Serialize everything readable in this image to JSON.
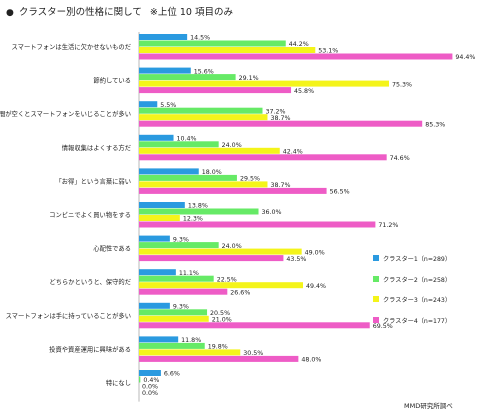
{
  "header": {
    "bullet": "●",
    "title": "クラスター別の性格に関して",
    "note": "※上位 10 項目のみ"
  },
  "source": "MMD研究所調べ",
  "colors": {
    "クラスター1": "#2a9ae0",
    "クラスター2": "#66ea66",
    "クラスター3": "#f4f41a",
    "クラスター4": "#ee5cc6",
    "axis": "#b8b8b8"
  },
  "chart_data": {
    "type": "bar",
    "orientation": "horizontal",
    "categories": [
      "スマートフォンは生活に欠かせないものだ",
      "節約している",
      "時間が空くとスマートフォンをいじることが多い",
      "情報収集はよくする方だ",
      "「お得」という言葉に弱い",
      "コンビニでよく買い物をする",
      "心配性である",
      "どちらかというと、保守的だ",
      "スマートフォンは手に持っていることが多い",
      "投資や資産運用に興味がある",
      "特になし"
    ],
    "series": [
      {
        "name": "クラスター1",
        "legend": "クラスター1（n=289）",
        "values": [
          14.5,
          15.6,
          5.5,
          10.4,
          18.0,
          13.8,
          9.3,
          11.1,
          9.3,
          11.8,
          6.6
        ]
      },
      {
        "name": "クラスター2",
        "legend": "クラスター2（n=258）",
        "values": [
          44.2,
          29.1,
          37.2,
          24.0,
          29.5,
          36.0,
          24.0,
          22.5,
          20.5,
          19.8,
          0.4
        ]
      },
      {
        "name": "クラスター3",
        "legend": "クラスター3（n=243）",
        "values": [
          53.1,
          75.3,
          38.7,
          42.4,
          38.7,
          12.3,
          49.0,
          49.4,
          21.0,
          30.5,
          0.0
        ]
      },
      {
        "name": "クラスター4",
        "legend": "クラスター4（n=177）",
        "values": [
          94.4,
          45.8,
          85.3,
          74.6,
          56.5,
          71.2,
          43.5,
          26.6,
          69.5,
          48.0,
          0.0
        ]
      }
    ],
    "xlim": [
      0,
      100
    ],
    "value_suffix": "%",
    "legend_position": "right",
    "grid": false
  }
}
